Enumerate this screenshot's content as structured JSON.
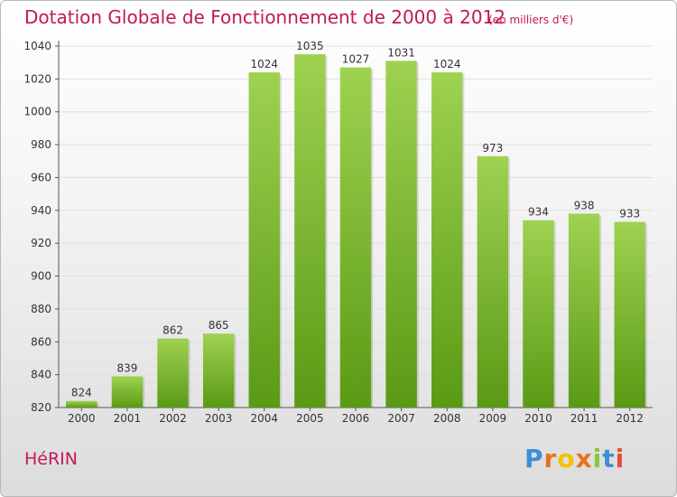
{
  "header": {
    "title": "Dotation Globale de Fonctionnement de 2000 à 2012",
    "unit": "(en milliers d'€)"
  },
  "footer": {
    "commune": "HéRIN",
    "logo_letters": [
      "P",
      "r",
      "o",
      "x",
      "i",
      "t",
      "i"
    ],
    "logo_colors": [
      "#3b8fd6",
      "#e8731a",
      "#f2c400",
      "#e8731a",
      "#8cc63e",
      "#3b8fd6",
      "#e84c3d"
    ]
  },
  "colors": {
    "bar_top": "#9ed250",
    "bar_bottom": "#5a9a14",
    "title": "#c2185b",
    "grid": "#e0e0e0"
  },
  "chart_data": {
    "type": "bar",
    "title": "Dotation Globale de Fonctionnement de 2000 à 2012",
    "subtitle": "(en milliers d'€)",
    "xlabel": "",
    "ylabel": "",
    "categories": [
      "2000",
      "2001",
      "2002",
      "2003",
      "2004",
      "2005",
      "2006",
      "2007",
      "2008",
      "2009",
      "2010",
      "2011",
      "2012"
    ],
    "values": [
      824,
      839,
      862,
      865,
      1024,
      1035,
      1027,
      1031,
      1024,
      973,
      934,
      938,
      933
    ],
    "ylim": [
      820,
      1040
    ],
    "yticks": [
      820,
      840,
      860,
      880,
      900,
      920,
      940,
      960,
      980,
      1000,
      1020,
      1040
    ],
    "grid": true,
    "legend": "none"
  }
}
